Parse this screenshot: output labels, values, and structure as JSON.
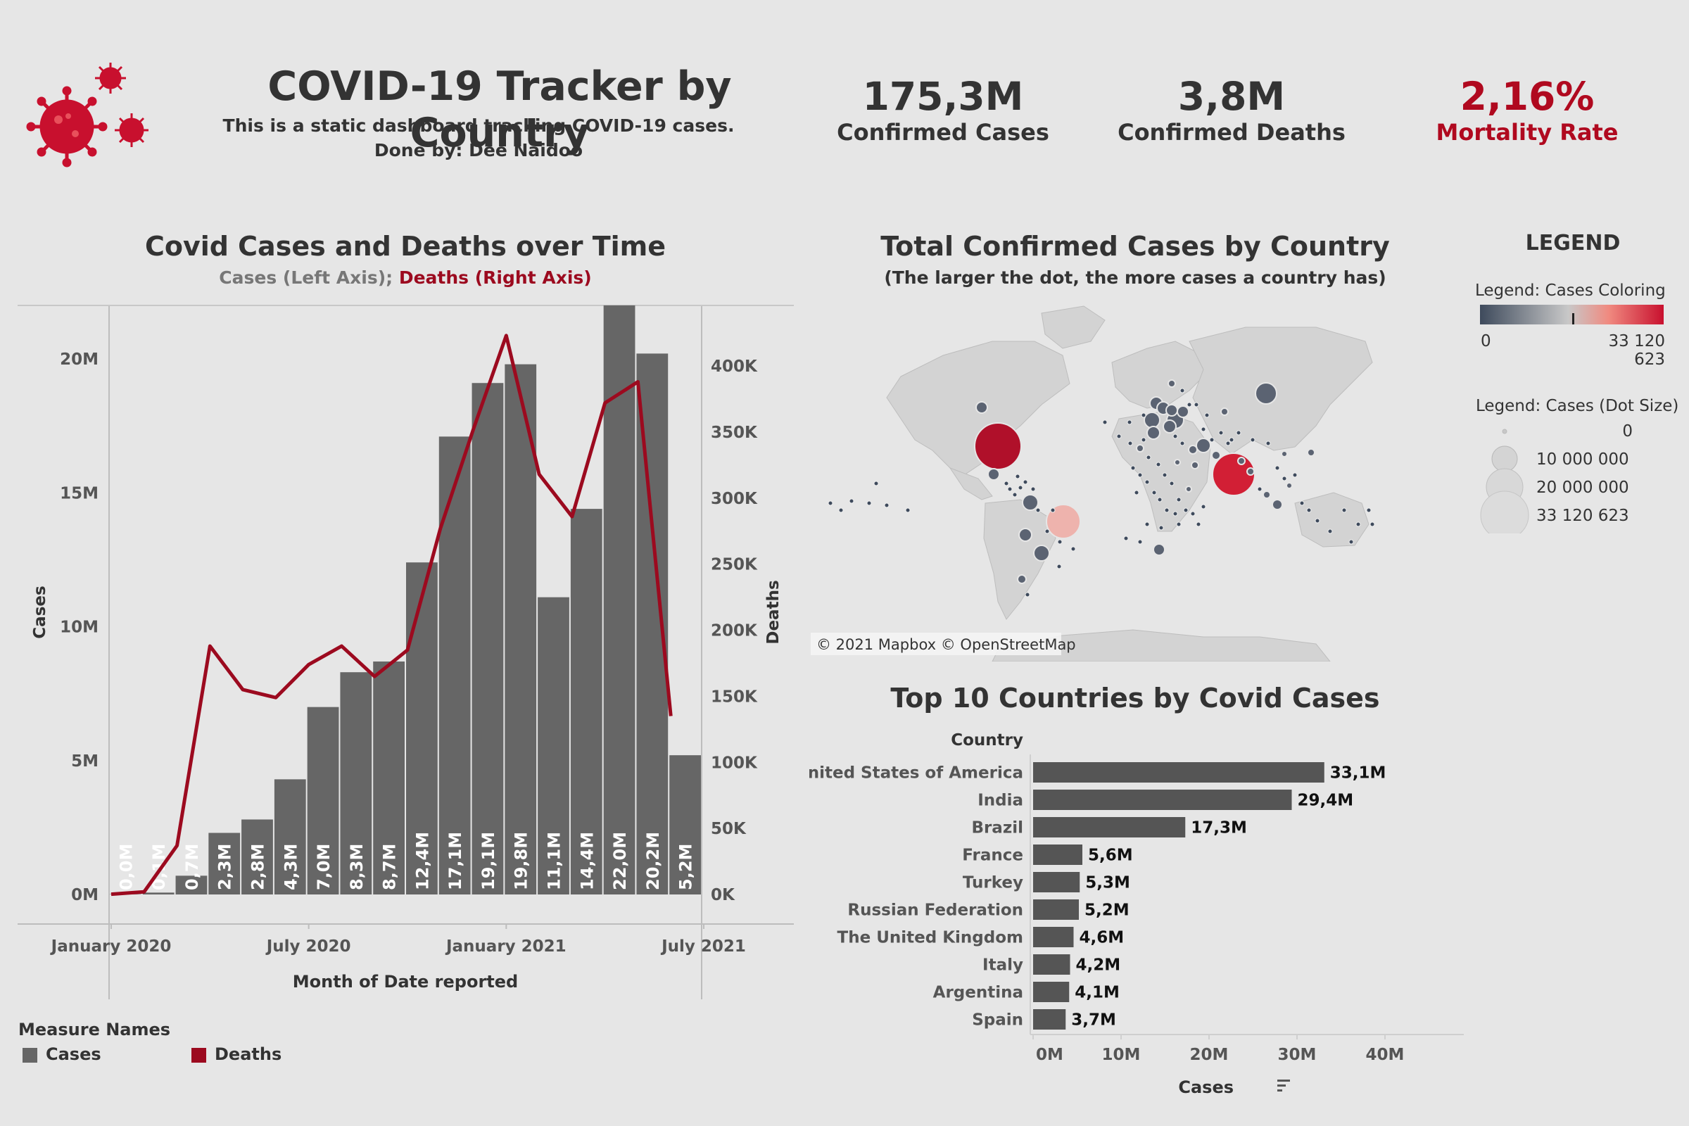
{
  "header": {
    "title": "COVID-19 Tracker by Country",
    "subtitle": "This is a static dashboard tracking COVID-19 cases.",
    "author": "Done by: Dee Naidoo",
    "logo_icon": "virus-icon"
  },
  "kpis": [
    {
      "value": "175,3M",
      "label": "Confirmed Cases",
      "color": "#333333"
    },
    {
      "value": "3,8M",
      "label": "Confirmed Deaths",
      "color": "#333333"
    },
    {
      "value": "2,16%",
      "label": "Mortality Rate",
      "color": "#b0091f"
    }
  ],
  "colors": {
    "cases": "#666666",
    "deaths": "#9c0a1f",
    "bg": "#e6e6e6"
  },
  "time_chart": {
    "title": "Covid Cases and Deaths over Time",
    "subtitle_cases": "Cases (Left Axis);",
    "subtitle_deaths": "Deaths (Right Axis)",
    "xlabel": "Month of Date reported",
    "ylabel_left": "Cases",
    "ylabel_right": "Deaths",
    "left_ticks": [
      "0M",
      "5M",
      "10M",
      "15M",
      "20M"
    ],
    "right_ticks": [
      "0K",
      "50K",
      "100K",
      "150K",
      "200K",
      "250K",
      "300K",
      "350K",
      "400K"
    ],
    "x_ticks": [
      "January 2020",
      "July 2020",
      "January 2021",
      "July 2021"
    ]
  },
  "legend": {
    "title": "Measure Names",
    "cases": "Cases",
    "deaths": "Deaths"
  },
  "map": {
    "title": "Total Confirmed Cases by Country",
    "subtitle": "(The larger the dot, the more cases a country has)",
    "attribution": "© 2021 Mapbox © OpenStreetMap"
  },
  "map_legend": {
    "title": "LEGEND",
    "color_title": "Legend: Cases Coloring",
    "color_min": "0",
    "color_max": "33 120 623",
    "size_title": "Legend: Cases (Dot Size)",
    "size_items": [
      "0",
      "10 000 000",
      "20 000 000",
      "33 120 623"
    ]
  },
  "top10": {
    "title": "Top 10 Countries by Covid Cases",
    "column_header": "Country",
    "xlabel": "Cases",
    "x_ticks": [
      "0M",
      "10M",
      "20M",
      "30M",
      "40M"
    ],
    "sort_icon": "sort-descending-icon"
  },
  "chart_data": [
    {
      "type": "bar",
      "title": "Covid Cases and Deaths over Time",
      "xlabel": "Month of Date reported",
      "ylabel": "Cases",
      "ylim": [
        0,
        23000000
      ],
      "y2label": "Deaths",
      "y2lim": [
        0,
        450000
      ],
      "categories": [
        "2020-01",
        "2020-02",
        "2020-03",
        "2020-04",
        "2020-05",
        "2020-06",
        "2020-07",
        "2020-08",
        "2020-09",
        "2020-10",
        "2020-11",
        "2020-12",
        "2021-01",
        "2021-02",
        "2021-03",
        "2021-04",
        "2021-05",
        "2021-06"
      ],
      "series": [
        {
          "name": "Cases",
          "type": "bar",
          "axis": "left",
          "values": [
            10000,
            70000,
            700000,
            2300000,
            2800000,
            4300000,
            7000000,
            8300000,
            8700000,
            12400000,
            17100000,
            19100000,
            19800000,
            11100000,
            14400000,
            22000000,
            20200000,
            5200000
          ],
          "labels": [
            "0,0M",
            "0,1M",
            "0,7M",
            "2,3M",
            "2,8M",
            "4,3M",
            "7,0M",
            "8,3M",
            "8,7M",
            "12,4M",
            "17,1M",
            "19,1M",
            "19,8M",
            "11,1M",
            "14,4M",
            "22,0M",
            "20,2M",
            "5,2M"
          ]
        },
        {
          "name": "Deaths",
          "type": "line",
          "axis": "right",
          "values": [
            200,
            2000,
            37000,
            188000,
            155000,
            149000,
            174000,
            188000,
            165000,
            185000,
            277000,
            352000,
            423000,
            318000,
            286000,
            372000,
            388000,
            135000
          ]
        }
      ]
    },
    {
      "type": "bar",
      "orientation": "horizontal",
      "title": "Top 10 Countries by Covid Cases",
      "xlabel": "Cases",
      "xlim": [
        0,
        40000000
      ],
      "categories": [
        "United States of America",
        "India",
        "Brazil",
        "France",
        "Turkey",
        "Russian Federation",
        "The United Kingdom",
        "Italy",
        "Argentina",
        "Spain"
      ],
      "values": [
        33100000,
        29400000,
        17300000,
        5600000,
        5300000,
        5200000,
        4600000,
        4200000,
        4100000,
        3700000
      ],
      "labels": [
        "33,1M",
        "29,4M",
        "17,3M",
        "5,6M",
        "5,3M",
        "5,2M",
        "4,6M",
        "4,2M",
        "4,1M",
        "3,7M"
      ]
    },
    {
      "type": "scatter",
      "title": "Total Confirmed Cases by Country",
      "note": "bubble map",
      "points": [
        {
          "name": "United States of America",
          "value": 33100000
        },
        {
          "name": "India",
          "value": 29400000
        },
        {
          "name": "Brazil",
          "value": 17300000
        },
        {
          "name": "Russian Federation",
          "value": 5200000
        },
        {
          "name": "France",
          "value": 5600000
        },
        {
          "name": "Turkey",
          "value": 5300000
        },
        {
          "name": "Argentina",
          "value": 4100000
        }
      ]
    }
  ]
}
